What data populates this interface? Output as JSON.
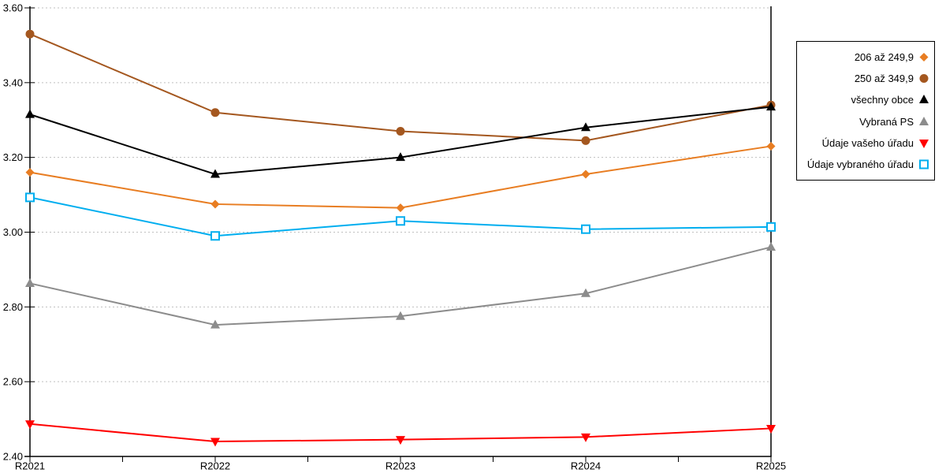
{
  "chart_data": {
    "type": "line",
    "title": "",
    "xlabel": "",
    "ylabel": "",
    "x_categories": [
      "R2021",
      "R2022",
      "R2023",
      "R2024",
      "R2025"
    ],
    "ylim": [
      2.4,
      3.6
    ],
    "ytick_step": 0.2,
    "yticks": [
      "2.40",
      "2.60",
      "2.80",
      "3.00",
      "3.20",
      "3.40",
      "3.60"
    ],
    "grid": "horizontal-dotted",
    "legend_position": "right-outside",
    "series": [
      {
        "name": "206 až 249,9",
        "marker": "diamond",
        "color": "#E87D22",
        "values": [
          3.16,
          3.075,
          3.065,
          3.155,
          3.23
        ]
      },
      {
        "name": "250 až 349,9",
        "marker": "circle",
        "color": "#A4571F",
        "values": [
          3.53,
          3.32,
          3.27,
          3.245,
          3.34
        ]
      },
      {
        "name": "všechny obce",
        "marker": "triangle-up",
        "color": "#000000",
        "values": [
          3.315,
          3.155,
          3.2,
          3.28,
          3.335
        ]
      },
      {
        "name": "Vybraná PS",
        "marker": "triangle-up",
        "color": "#8C8C8C",
        "values": [
          2.863,
          2.752,
          2.775,
          2.836,
          2.96
        ]
      },
      {
        "name": "Údaje vašeho úřadu",
        "marker": "triangle-down",
        "color": "#FF0000",
        "values": [
          2.487,
          2.44,
          2.445,
          2.452,
          2.475
        ]
      },
      {
        "name": "Údaje vybraného úřadu",
        "marker": "square-open",
        "color": "#00AEEF",
        "values": [
          3.093,
          2.99,
          3.03,
          3.008,
          3.014
        ]
      }
    ]
  },
  "axes": {
    "axis_color": "#000000",
    "grid_color": "#BFBFBF",
    "label_color": "#000000"
  }
}
